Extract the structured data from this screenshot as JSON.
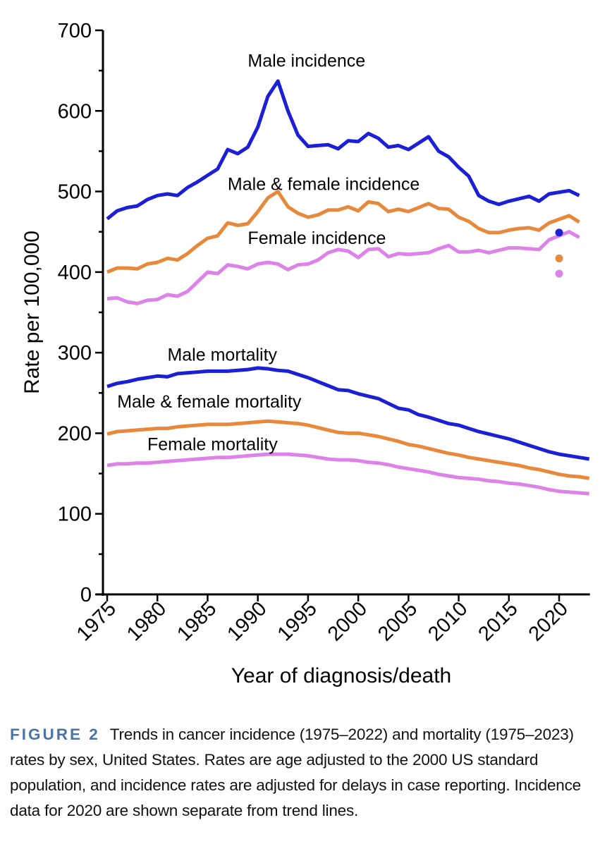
{
  "chart_data": {
    "type": "line",
    "title": "",
    "xlabel": "Year of diagnosis/death",
    "ylabel": "Rate per 100,000",
    "ylim": [
      0,
      700
    ],
    "xlim": [
      1975,
      2023
    ],
    "yticks": [
      0,
      100,
      200,
      300,
      400,
      500,
      600,
      700
    ],
    "xticks": [
      1975,
      1980,
      1985,
      1990,
      1995,
      2000,
      2005,
      2010,
      2015,
      2020
    ],
    "grid": false,
    "legend": "none (direct labels)",
    "colors": {
      "male": "#1b1fd6",
      "both": "#e8883a",
      "female": "#dd82e8"
    },
    "series": [
      {
        "name": "Male incidence",
        "color_key": "male",
        "x": [
          1975,
          1976,
          1977,
          1978,
          1979,
          1980,
          1981,
          1982,
          1983,
          1984,
          1985,
          1986,
          1987,
          1988,
          1989,
          1990,
          1991,
          1992,
          1993,
          1994,
          1995,
          1996,
          1997,
          1998,
          1999,
          2000,
          2001,
          2002,
          2003,
          2004,
          2005,
          2006,
          2007,
          2008,
          2009,
          2010,
          2011,
          2012,
          2013,
          2014,
          2015,
          2016,
          2017,
          2018,
          2019,
          null,
          2021,
          2022
        ],
        "values": [
          466,
          476,
          480,
          482,
          490,
          495,
          497,
          495,
          505,
          512,
          520,
          528,
          552,
          547,
          555,
          580,
          618,
          637,
          600,
          570,
          556,
          557,
          558,
          553,
          563,
          562,
          572,
          566,
          555,
          557,
          552,
          560,
          568,
          550,
          543,
          530,
          519,
          495,
          488,
          484,
          488,
          491,
          494,
          488,
          497,
          null,
          501,
          495
        ],
        "label_year": 1989,
        "label_value": 655
      },
      {
        "name": "Male & female incidence",
        "color_key": "both",
        "x": [
          1975,
          1976,
          1977,
          1978,
          1979,
          1980,
          1981,
          1982,
          1983,
          1984,
          1985,
          1986,
          1987,
          1988,
          1989,
          1990,
          1991,
          1992,
          1993,
          1994,
          1995,
          1996,
          1997,
          1998,
          1999,
          2000,
          2001,
          2002,
          2003,
          2004,
          2005,
          2006,
          2007,
          2008,
          2009,
          2010,
          2011,
          2012,
          2013,
          2014,
          2015,
          2016,
          2017,
          2018,
          2019,
          null,
          2021,
          2022
        ],
        "values": [
          400,
          405,
          405,
          404,
          410,
          412,
          417,
          415,
          423,
          433,
          442,
          445,
          461,
          458,
          460,
          475,
          492,
          500,
          481,
          473,
          468,
          471,
          477,
          477,
          481,
          476,
          487,
          485,
          475,
          478,
          475,
          480,
          485,
          479,
          478,
          468,
          463,
          454,
          449,
          449,
          452,
          454,
          455,
          452,
          461,
          null,
          470,
          462
        ],
        "label_year": 1987,
        "label_value": 502
      },
      {
        "name": "Female incidence",
        "color_key": "female",
        "x": [
          1975,
          1976,
          1977,
          1978,
          1979,
          1980,
          1981,
          1982,
          1983,
          1984,
          1985,
          1986,
          1987,
          1988,
          1989,
          1990,
          1991,
          1992,
          1993,
          1994,
          1995,
          1996,
          1997,
          1998,
          1999,
          2000,
          2001,
          2002,
          2003,
          2004,
          2005,
          2006,
          2007,
          2008,
          2009,
          2010,
          2011,
          2012,
          2013,
          2014,
          2015,
          2016,
          2017,
          2018,
          2019,
          null,
          2021,
          2022
        ],
        "values": [
          367,
          368,
          363,
          361,
          365,
          366,
          372,
          370,
          376,
          388,
          400,
          398,
          409,
          407,
          404,
          410,
          412,
          410,
          403,
          409,
          410,
          415,
          424,
          428,
          426,
          418,
          428,
          429,
          419,
          423,
          422,
          423,
          424,
          429,
          433,
          425,
          425,
          427,
          424,
          427,
          430,
          430,
          429,
          428,
          440,
          null,
          450,
          443
        ],
        "label_year": 1989,
        "label_value": 435
      },
      {
        "name": "Male mortality",
        "color_key": "male",
        "x": [
          1975,
          1976,
          1977,
          1978,
          1979,
          1980,
          1981,
          1982,
          1983,
          1984,
          1985,
          1986,
          1987,
          1988,
          1989,
          1990,
          1991,
          1992,
          1993,
          1994,
          1995,
          1996,
          1997,
          1998,
          1999,
          2000,
          2001,
          2002,
          2003,
          2004,
          2005,
          2006,
          2007,
          2008,
          2009,
          2010,
          2011,
          2012,
          2013,
          2014,
          2015,
          2016,
          2017,
          2018,
          2019,
          2020,
          2021,
          2022,
          2023
        ],
        "values": [
          258,
          262,
          264,
          267,
          269,
          271,
          270,
          274,
          275,
          276,
          277,
          277,
          277,
          278,
          279,
          281,
          280,
          278,
          277,
          273,
          269,
          264,
          259,
          254,
          253,
          249,
          246,
          243,
          237,
          231,
          229,
          223,
          220,
          216,
          212,
          210,
          206,
          202,
          199,
          196,
          193,
          189,
          185,
          181,
          177,
          174,
          172,
          170,
          168
        ],
        "label_year": 1981,
        "label_value": 290
      },
      {
        "name": "Male & female mortality",
        "color_key": "both",
        "x": [
          1975,
          1976,
          1977,
          1978,
          1979,
          1980,
          1981,
          1982,
          1983,
          1984,
          1985,
          1986,
          1987,
          1988,
          1989,
          1990,
          1991,
          1992,
          1993,
          1994,
          1995,
          1996,
          1997,
          1998,
          1999,
          2000,
          2001,
          2002,
          2003,
          2004,
          2005,
          2006,
          2007,
          2008,
          2009,
          2010,
          2011,
          2012,
          2013,
          2014,
          2015,
          2016,
          2017,
          2018,
          2019,
          2020,
          2021,
          2022,
          2023
        ],
        "values": [
          199,
          202,
          203,
          204,
          205,
          206,
          206,
          208,
          209,
          210,
          211,
          211,
          211,
          212,
          213,
          214,
          215,
          214,
          213,
          212,
          210,
          207,
          204,
          201,
          200,
          200,
          198,
          196,
          193,
          190,
          186,
          184,
          181,
          178,
          175,
          173,
          170,
          168,
          166,
          164,
          162,
          160,
          157,
          155,
          152,
          149,
          147,
          146,
          144
        ],
        "label_year": 1976,
        "label_value": 232
      },
      {
        "name": "Female mortality",
        "color_key": "female",
        "x": [
          1975,
          1976,
          1977,
          1978,
          1979,
          1980,
          1981,
          1982,
          1983,
          1984,
          1985,
          1986,
          1987,
          1988,
          1989,
          1990,
          1991,
          1992,
          1993,
          1994,
          1995,
          1996,
          1997,
          1998,
          1999,
          2000,
          2001,
          2002,
          2003,
          2004,
          2005,
          2006,
          2007,
          2008,
          2009,
          2010,
          2011,
          2012,
          2013,
          2014,
          2015,
          2016,
          2017,
          2018,
          2019,
          2020,
          2021,
          2022,
          2023
        ],
        "values": [
          160,
          162,
          162,
          163,
          163,
          164,
          165,
          166,
          167,
          168,
          169,
          170,
          170,
          171,
          172,
          173,
          174,
          174,
          174,
          173,
          172,
          170,
          168,
          167,
          167,
          166,
          164,
          163,
          161,
          158,
          156,
          154,
          152,
          149,
          147,
          145,
          144,
          143,
          141,
          140,
          138,
          137,
          135,
          133,
          130,
          128,
          127,
          126,
          125
        ],
        "label_year": 1979,
        "label_value": 179
      }
    ],
    "points_2020": [
      {
        "name": "Male incidence 2020",
        "color_key": "male",
        "x": 2020,
        "value": 449
      },
      {
        "name": "Male & female incidence 2020",
        "color_key": "both",
        "x": 2020,
        "value": 417
      },
      {
        "name": "Female incidence 2020",
        "color_key": "female",
        "x": 2020,
        "value": 398
      }
    ]
  },
  "caption": {
    "figure_label": "FIGURE 2",
    "text": "Trends in cancer incidence (1975–2022) and mortality (1975–2023) rates by sex, United States. Rates are age adjusted to the 2000 US standard population, and incidence rates are adjusted for delays in case reporting. Incidence data for 2020 are shown separate from trend lines."
  }
}
